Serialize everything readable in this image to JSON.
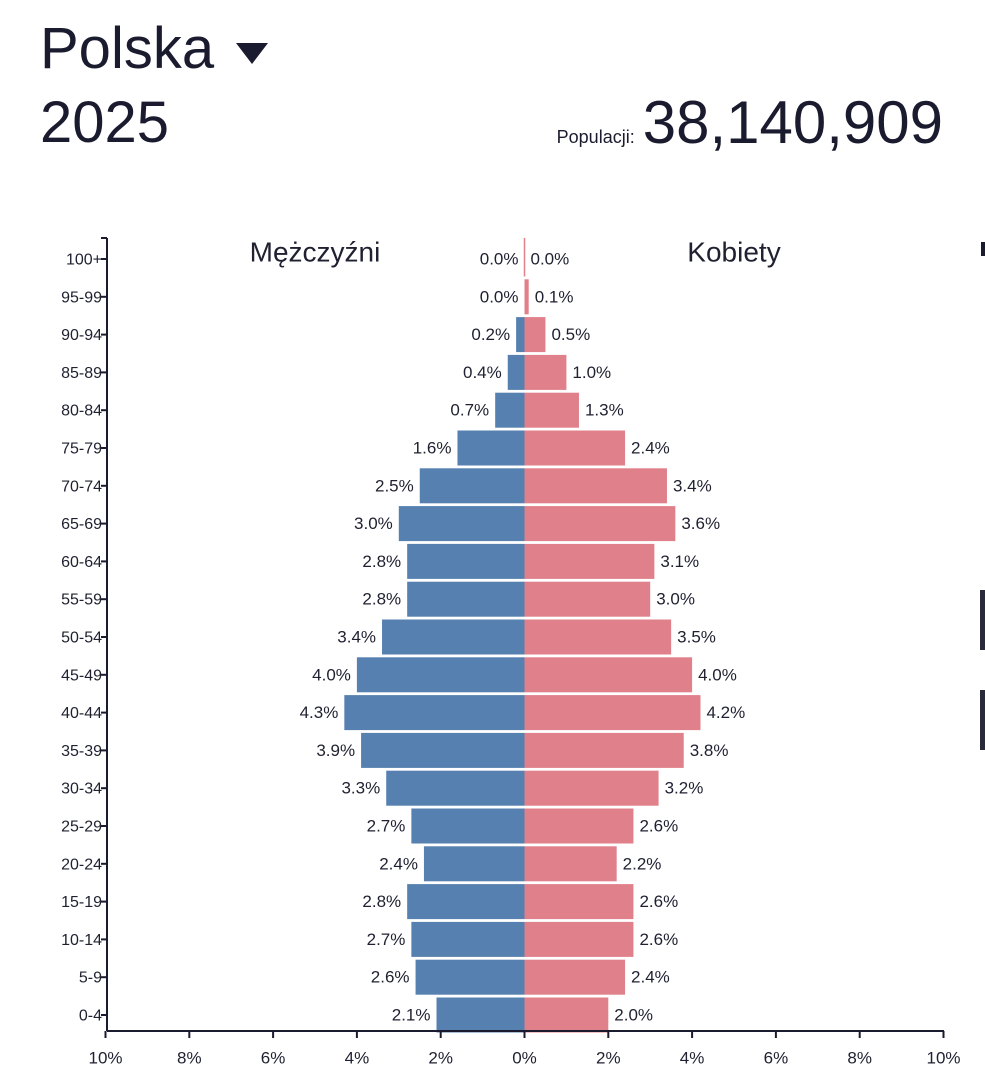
{
  "header": {
    "country": "Polska",
    "year": "2025",
    "population_label": "Populacji:",
    "population_value": "38,140,909"
  },
  "colors": {
    "male": "#5580b0",
    "female": "#e0808a",
    "text": "#1f2030",
    "axis": "#1a1b2e"
  },
  "chart_data": {
    "type": "bar",
    "orientation": "horizontal-population-pyramid",
    "categories": [
      "100+",
      "95-99",
      "90-94",
      "85-89",
      "80-84",
      "75-79",
      "70-74",
      "65-69",
      "60-64",
      "55-59",
      "50-54",
      "45-49",
      "40-44",
      "35-39",
      "30-34",
      "25-29",
      "20-24",
      "15-19",
      "10-14",
      "5-9",
      "0-4"
    ],
    "series": [
      {
        "name": "Mężczyźni",
        "values": [
          0.0,
          0.0,
          0.2,
          0.4,
          0.7,
          1.6,
          2.5,
          3.0,
          2.8,
          2.8,
          3.4,
          4.0,
          4.3,
          3.9,
          3.3,
          2.7,
          2.4,
          2.8,
          2.7,
          2.6,
          2.1
        ],
        "labels": [
          "0.0%",
          "0.0%",
          "0.2%",
          "0.4%",
          "0.7%",
          "1.6%",
          "2.5%",
          "3.0%",
          "2.8%",
          "2.8%",
          "3.4%",
          "4.0%",
          "4.3%",
          "3.9%",
          "3.3%",
          "2.7%",
          "2.4%",
          "2.8%",
          "2.7%",
          "2.6%",
          "2.1%"
        ]
      },
      {
        "name": "Kobiety",
        "values": [
          0.0,
          0.1,
          0.5,
          1.0,
          1.3,
          2.4,
          3.4,
          3.6,
          3.1,
          3.0,
          3.5,
          4.0,
          4.2,
          3.8,
          3.2,
          2.6,
          2.2,
          2.6,
          2.6,
          2.4,
          2.0
        ],
        "labels": [
          "0.0%",
          "0.1%",
          "0.5%",
          "1.0%",
          "1.3%",
          "2.4%",
          "3.4%",
          "3.6%",
          "3.1%",
          "3.0%",
          "3.5%",
          "4.0%",
          "4.2%",
          "3.8%",
          "3.2%",
          "2.6%",
          "2.2%",
          "2.6%",
          "2.6%",
          "2.4%",
          "2.0%"
        ]
      }
    ],
    "xticks": [
      "10%",
      "8%",
      "6%",
      "4%",
      "2%",
      "0%",
      "2%",
      "4%",
      "6%",
      "8%",
      "10%"
    ],
    "xlim": [
      -10,
      10
    ],
    "title": "",
    "xlabel": "",
    "ylabel": "",
    "legend": [
      "Mężczyźni",
      "Kobiety"
    ],
    "grid": false
  }
}
